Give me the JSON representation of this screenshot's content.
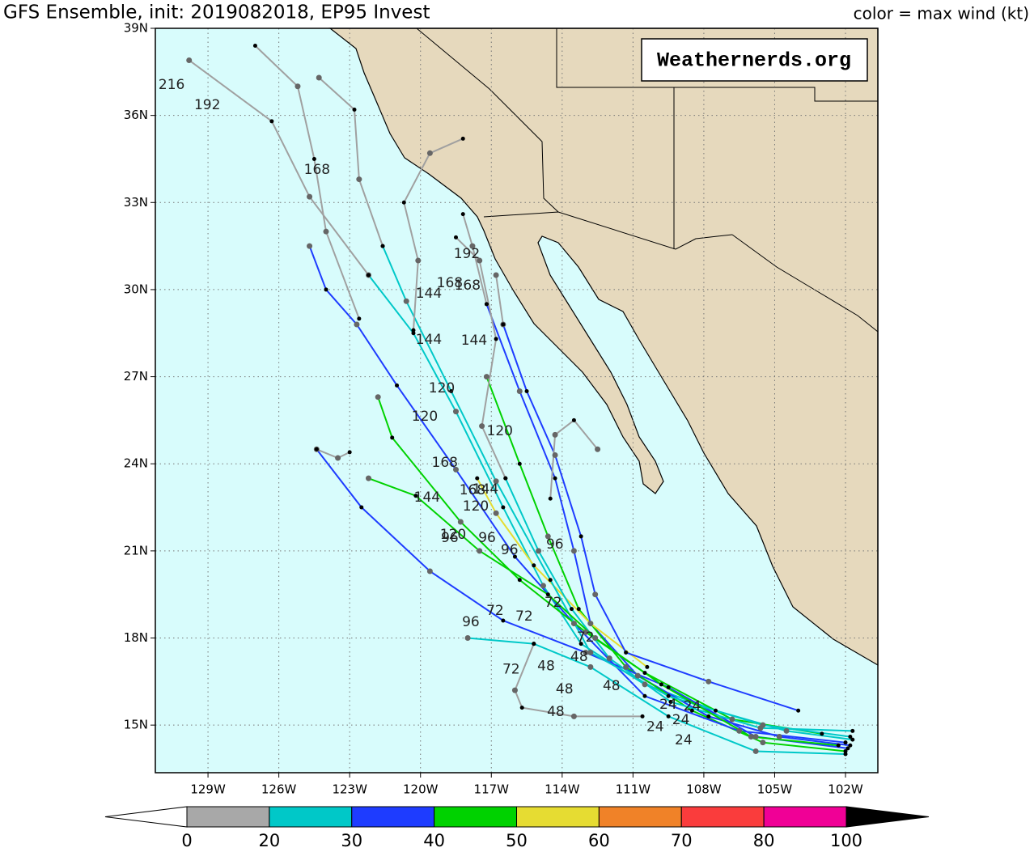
{
  "header": {
    "title": "GFS Ensemble, init: 2019082018, EP95 Invest",
    "legend_title": "color = max wind (kt)",
    "watermark": "Weathernerds.org"
  },
  "map": {
    "type": "track-map",
    "lonlim": [
      -131.23,
      -100.63
    ],
    "latlim": [
      13.36,
      39
    ],
    "lonticks": [
      {
        "value": -129,
        "label": "129W"
      },
      {
        "value": -126,
        "label": "126W"
      },
      {
        "value": -123,
        "label": "123W"
      },
      {
        "value": -120,
        "label": "120W"
      },
      {
        "value": -117,
        "label": "117W"
      },
      {
        "value": -114,
        "label": "114W"
      },
      {
        "value": -111,
        "label": "111W"
      },
      {
        "value": -108,
        "label": "108W"
      },
      {
        "value": -105,
        "label": "105W"
      },
      {
        "value": -102,
        "label": "102W"
      }
    ],
    "latticks": [
      {
        "value": 39,
        "label": "39N"
      },
      {
        "value": 36,
        "label": "36N"
      },
      {
        "value": 33,
        "label": "33N"
      },
      {
        "value": 30,
        "label": "30N"
      },
      {
        "value": 27,
        "label": "27N"
      },
      {
        "value": 24,
        "label": "24N"
      },
      {
        "value": 21,
        "label": "21N"
      },
      {
        "value": 18,
        "label": "18N"
      },
      {
        "value": 15,
        "label": "15N"
      }
    ],
    "grid": true,
    "tracks": [
      {
        "color": "#00c8c8",
        "lon": [
          -101.7,
          -104.5,
          -107.5,
          -110.5,
          -113.2,
          -114.8,
          -116.5,
          -118.5,
          -120.3,
          -122.2
        ],
        "lat": [
          14.5,
          14.8,
          15.5,
          16.4,
          17.8,
          19.8,
          22.5,
          25.8,
          28.5,
          30.5
        ]
      },
      {
        "color": "#a0a0a0",
        "lon": [
          -122.2,
          -124.7,
          -126.3,
          -129.8
        ],
        "lat": [
          30.5,
          33.2,
          35.8,
          37.9
        ]
      },
      {
        "color": "#1e3cff",
        "lon": [
          -101.8,
          -104.8,
          -107.8,
          -110.8,
          -112.8,
          -113.5,
          -114.3,
          -115.8,
          -117.2
        ],
        "lat": [
          14.3,
          14.6,
          15.3,
          16.7,
          18.5,
          21,
          23.5,
          26.5,
          29.5
        ]
      },
      {
        "color": "#a0a0a0",
        "lon": [
          -117.2,
          -117.8,
          -118.2
        ],
        "lat": [
          29.5,
          31.5,
          32.6
        ]
      },
      {
        "color": "#00d200",
        "lon": [
          -102,
          -105.5,
          -108.5,
          -111.3,
          -113.3,
          -114.6,
          -115.8,
          -117.2
        ],
        "lat": [
          14.1,
          14.4,
          15.5,
          17,
          19,
          21.5,
          24,
          27
        ]
      },
      {
        "color": "#1e3cff",
        "lon": [
          -101.9,
          -105.8,
          -109.5,
          -113,
          -116.5,
          -119.6,
          -122.5,
          -124.4
        ],
        "lat": [
          14.2,
          14.6,
          16.3,
          17.5,
          18.6,
          20.3,
          22.5,
          24.5
        ]
      },
      {
        "color": "#a0a0a0",
        "lon": [
          -124.4,
          -123.5,
          -123
        ],
        "lat": [
          24.5,
          24.2,
          24.4
        ]
      },
      {
        "color": "#00c8c8",
        "lon": [
          -102,
          -105.8,
          -109.5,
          -112.8,
          -115.2,
          -118
        ],
        "lat": [
          14,
          14.1,
          15.3,
          17,
          17.8,
          18
        ]
      },
      {
        "color": "#1e3cff",
        "lon": [
          -102,
          -106.5,
          -110.5,
          -113.5,
          -116,
          -118.5,
          -121,
          -122.7,
          -124,
          -124.7
        ],
        "lat": [
          14.4,
          14.8,
          16,
          18.5,
          20.8,
          23.8,
          26.7,
          28.8,
          30,
          31.5
        ]
      },
      {
        "color": "#00d200",
        "lon": [
          -103,
          -106.8,
          -110.5,
          -113,
          -115.8,
          -118.3,
          -121.2,
          -121.8
        ],
        "lat": [
          14.7,
          15.2,
          16.8,
          18.2,
          20,
          22,
          24.9,
          26.3
        ]
      },
      {
        "color": "#e6dc32",
        "lon": [
          -110.4,
          -112.8,
          -115.2,
          -116.8,
          -117.6
        ],
        "lat": [
          17,
          18.5,
          20.5,
          22.3,
          23.5
        ]
      },
      {
        "color": "#00c8c8",
        "lon": [
          -101.8,
          -105.5,
          -109.5,
          -112.8,
          -114.5,
          -116.8,
          -118.7,
          -120.6,
          -121.6
        ],
        "lat": [
          14.6,
          15,
          16,
          17.5,
          20,
          23.4,
          26.5,
          29.6,
          31.5
        ]
      },
      {
        "color": "#a0a0a0",
        "lon": [
          -121.6,
          -122.6,
          -122.8,
          -124.3
        ],
        "lat": [
          31.5,
          33.8,
          36.2,
          37.3
        ]
      },
      {
        "color": "#00c8c8",
        "lon": [
          -101.7,
          -105.6,
          -109.4,
          -112,
          -113.6,
          -115,
          -116.4
        ],
        "lat": [
          14.8,
          14.9,
          15.8,
          17.3,
          19,
          21,
          23.5
        ]
      },
      {
        "color": "#a0a0a0",
        "lon": [
          -116.4,
          -117.4,
          -116.8,
          -117.5,
          -118.5
        ],
        "lat": [
          23.5,
          25.3,
          28.3,
          31,
          31.8
        ]
      },
      {
        "color": "#1e3cff",
        "lon": [
          -104,
          -107.8,
          -111.3,
          -112.6,
          -113.2,
          -114.3,
          -115.5,
          -116.5
        ],
        "lat": [
          15.5,
          16.5,
          17.5,
          19.5,
          21.5,
          24.3,
          26.5,
          28.8
        ]
      },
      {
        "color": "#a0a0a0",
        "lon": [
          -116.5,
          -116.8
        ],
        "lat": [
          28.8,
          30.5
        ]
      },
      {
        "color": "#a0a0a0",
        "lon": [
          -120.3,
          -120.1,
          -120.7,
          -119.6,
          -118.2
        ],
        "lat": [
          28.6,
          31,
          33,
          34.7,
          35.2
        ]
      },
      {
        "color": "#a0a0a0",
        "lon": [
          -122.6,
          -124,
          -124.5,
          -125.2,
          -127
        ],
        "lat": [
          29,
          32,
          34.5,
          37,
          38.4
        ]
      },
      {
        "color": "#a0a0a0",
        "lon": [
          -115.2,
          -116,
          -115.7,
          -113.5,
          -110.6
        ],
        "lat": [
          17.8,
          16.2,
          15.6,
          15.3,
          15.3
        ]
      },
      {
        "color": "#00d200",
        "lon": [
          -102.3,
          -106,
          -109.8,
          -112.6,
          -114.6,
          -117.5,
          -120.2,
          -122.2
        ],
        "lat": [
          14.3,
          14.6,
          16.4,
          18,
          19.5,
          21,
          22.9,
          23.5
        ]
      },
      {
        "color": "#a0a0a0",
        "lon": [
          -114.5,
          -114.3,
          -113.5,
          -112.5
        ],
        "lat": [
          22.8,
          25,
          25.5,
          24.5
        ]
      }
    ],
    "hour_labels": [
      {
        "text": "216",
        "lon": -130.54,
        "lat": 37.05
      },
      {
        "text": "192",
        "lon": -129.03,
        "lat": 36.35
      },
      {
        "text": "168",
        "lon": -124.38,
        "lat": 34.12
      },
      {
        "text": "192",
        "lon": -118.04,
        "lat": 31.22
      },
      {
        "text": "168",
        "lon": -118.76,
        "lat": 30.22
      },
      {
        "text": "168",
        "lon": -118.01,
        "lat": 30.14
      },
      {
        "text": "144",
        "lon": -119.65,
        "lat": 29.86
      },
      {
        "text": "144",
        "lon": -119.65,
        "lat": 28.27
      },
      {
        "text": "144",
        "lon": -117.73,
        "lat": 28.24
      },
      {
        "text": "120",
        "lon": -119.1,
        "lat": 26.6
      },
      {
        "text": "120",
        "lon": -119.82,
        "lat": 25.62
      },
      {
        "text": "120",
        "lon": -116.64,
        "lat": 25.12
      },
      {
        "text": "168",
        "lon": -118.97,
        "lat": 24.03
      },
      {
        "text": "168",
        "lon": -117.8,
        "lat": 23.08
      },
      {
        "text": "144",
        "lon": -117.25,
        "lat": 23.11
      },
      {
        "text": "144",
        "lon": -119.72,
        "lat": 22.83
      },
      {
        "text": "120",
        "lon": -117.66,
        "lat": 22.53
      },
      {
        "text": "120",
        "lon": -118.62,
        "lat": 21.55
      },
      {
        "text": "96",
        "lon": -118.76,
        "lat": 21.44
      },
      {
        "text": "96",
        "lon": -117.18,
        "lat": 21.44
      },
      {
        "text": "96",
        "lon": -116.23,
        "lat": 21.02
      },
      {
        "text": "96",
        "lon": -114.31,
        "lat": 21.22
      },
      {
        "text": "72",
        "lon": -114.38,
        "lat": 19.21
      },
      {
        "text": "72",
        "lon": -116.84,
        "lat": 18.93
      },
      {
        "text": "72",
        "lon": -115.61,
        "lat": 18.74
      },
      {
        "text": "96",
        "lon": -117.87,
        "lat": 18.54
      },
      {
        "text": "72",
        "lon": -113.01,
        "lat": 18.01
      },
      {
        "text": "48",
        "lon": -113.28,
        "lat": 17.34
      },
      {
        "text": "72",
        "lon": -116.16,
        "lat": 16.92
      },
      {
        "text": "48",
        "lon": -114.68,
        "lat": 17.03
      },
      {
        "text": "48",
        "lon": -111.91,
        "lat": 16.34
      },
      {
        "text": "48",
        "lon": -113.9,
        "lat": 16.23
      },
      {
        "text": "48",
        "lon": -114.27,
        "lat": 15.45
      },
      {
        "text": "24",
        "lon": -109.51,
        "lat": 15.7
      },
      {
        "text": "24",
        "lon": -108.49,
        "lat": 15.64
      },
      {
        "text": "24",
        "lon": -108.97,
        "lat": 15.17
      },
      {
        "text": "24",
        "lon": -110.06,
        "lat": 14.94
      },
      {
        "text": "24",
        "lon": -108.86,
        "lat": 14.47
      }
    ]
  },
  "colorbar": {
    "ticks": [
      0,
      20,
      30,
      40,
      50,
      60,
      70,
      80,
      100
    ],
    "colors": [
      "#a8a8a8",
      "#00c8c8",
      "#1e3cff",
      "#00d200",
      "#e6dc32",
      "#f08228",
      "#fa3c3c",
      "#f00096"
    ],
    "below_color": "#ffffff",
    "above_color": "#000000"
  }
}
